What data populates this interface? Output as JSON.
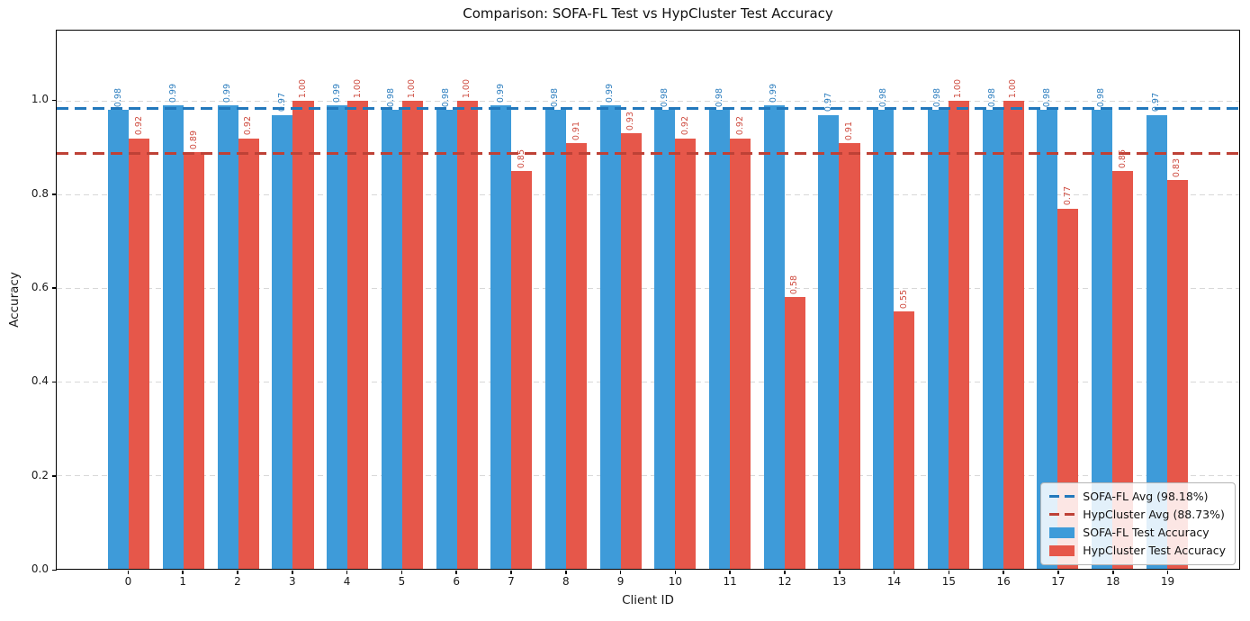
{
  "chart_data": {
    "type": "bar",
    "title": "Comparison: SOFA-FL Test vs HypCluster Test Accuracy",
    "xlabel": "Client ID",
    "ylabel": "Accuracy",
    "categories": [
      "0",
      "1",
      "2",
      "3",
      "4",
      "5",
      "6",
      "7",
      "8",
      "9",
      "10",
      "11",
      "12",
      "13",
      "14",
      "15",
      "16",
      "17",
      "18",
      "19"
    ],
    "series": [
      {
        "name": "SOFA-FL Test Accuracy",
        "color": "#3E9BD9",
        "label_color": "#2B7DBE",
        "values": [
          0.98,
          0.99,
          0.99,
          0.97,
          0.99,
          0.98,
          0.98,
          0.99,
          0.98,
          0.99,
          0.98,
          0.98,
          0.99,
          0.97,
          0.98,
          0.98,
          0.98,
          0.98,
          0.98,
          0.97
        ]
      },
      {
        "name": "HypCluster Test Accuracy",
        "color": "#E6574A",
        "label_color": "#CE4A3E",
        "values": [
          0.92,
          0.89,
          0.92,
          1.0,
          1.0,
          1.0,
          1.0,
          0.85,
          0.91,
          0.93,
          0.92,
          0.92,
          0.58,
          0.91,
          0.55,
          1.0,
          1.0,
          0.77,
          0.85,
          0.83
        ]
      }
    ],
    "avg_lines": [
      {
        "name": "SOFA-FL Avg (98.18%)",
        "value": 0.9818,
        "color": "#2278BC"
      },
      {
        "name": "HypCluster Avg (88.73%)",
        "value": 0.8873,
        "color": "#BE4136"
      }
    ],
    "ylim": [
      0,
      1.15
    ],
    "yticks": [
      "0.0",
      "0.2",
      "0.4",
      "0.6",
      "0.8",
      "1.0"
    ],
    "grid": true,
    "gridline_color": "#d8d8d8",
    "legend_position": "lower right",
    "value_label_format": "0.00"
  },
  "legend": {
    "items": [
      {
        "label": "SOFA-FL Avg (98.18%)",
        "swatch": "dashed-line",
        "color": "#2278BC"
      },
      {
        "label": "HypCluster Avg (88.73%)",
        "swatch": "dashed-line",
        "color": "#BE4136"
      },
      {
        "label": "SOFA-FL Test Accuracy",
        "swatch": "patch",
        "color": "#3E9BD9"
      },
      {
        "label": "HypCluster Test Accuracy",
        "swatch": "patch",
        "color": "#E6574A"
      }
    ]
  }
}
